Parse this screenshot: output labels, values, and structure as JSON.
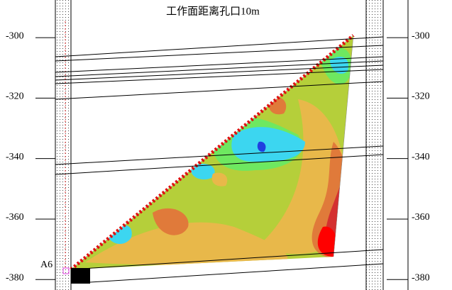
{
  "chart_data": {
    "type": "contour",
    "title": "工作面距离孔口10m",
    "annotation": "A6",
    "ylim": [
      -383,
      -288
    ],
    "yticks": [
      -300,
      -320,
      -340,
      -360,
      -380
    ]
  }
}
